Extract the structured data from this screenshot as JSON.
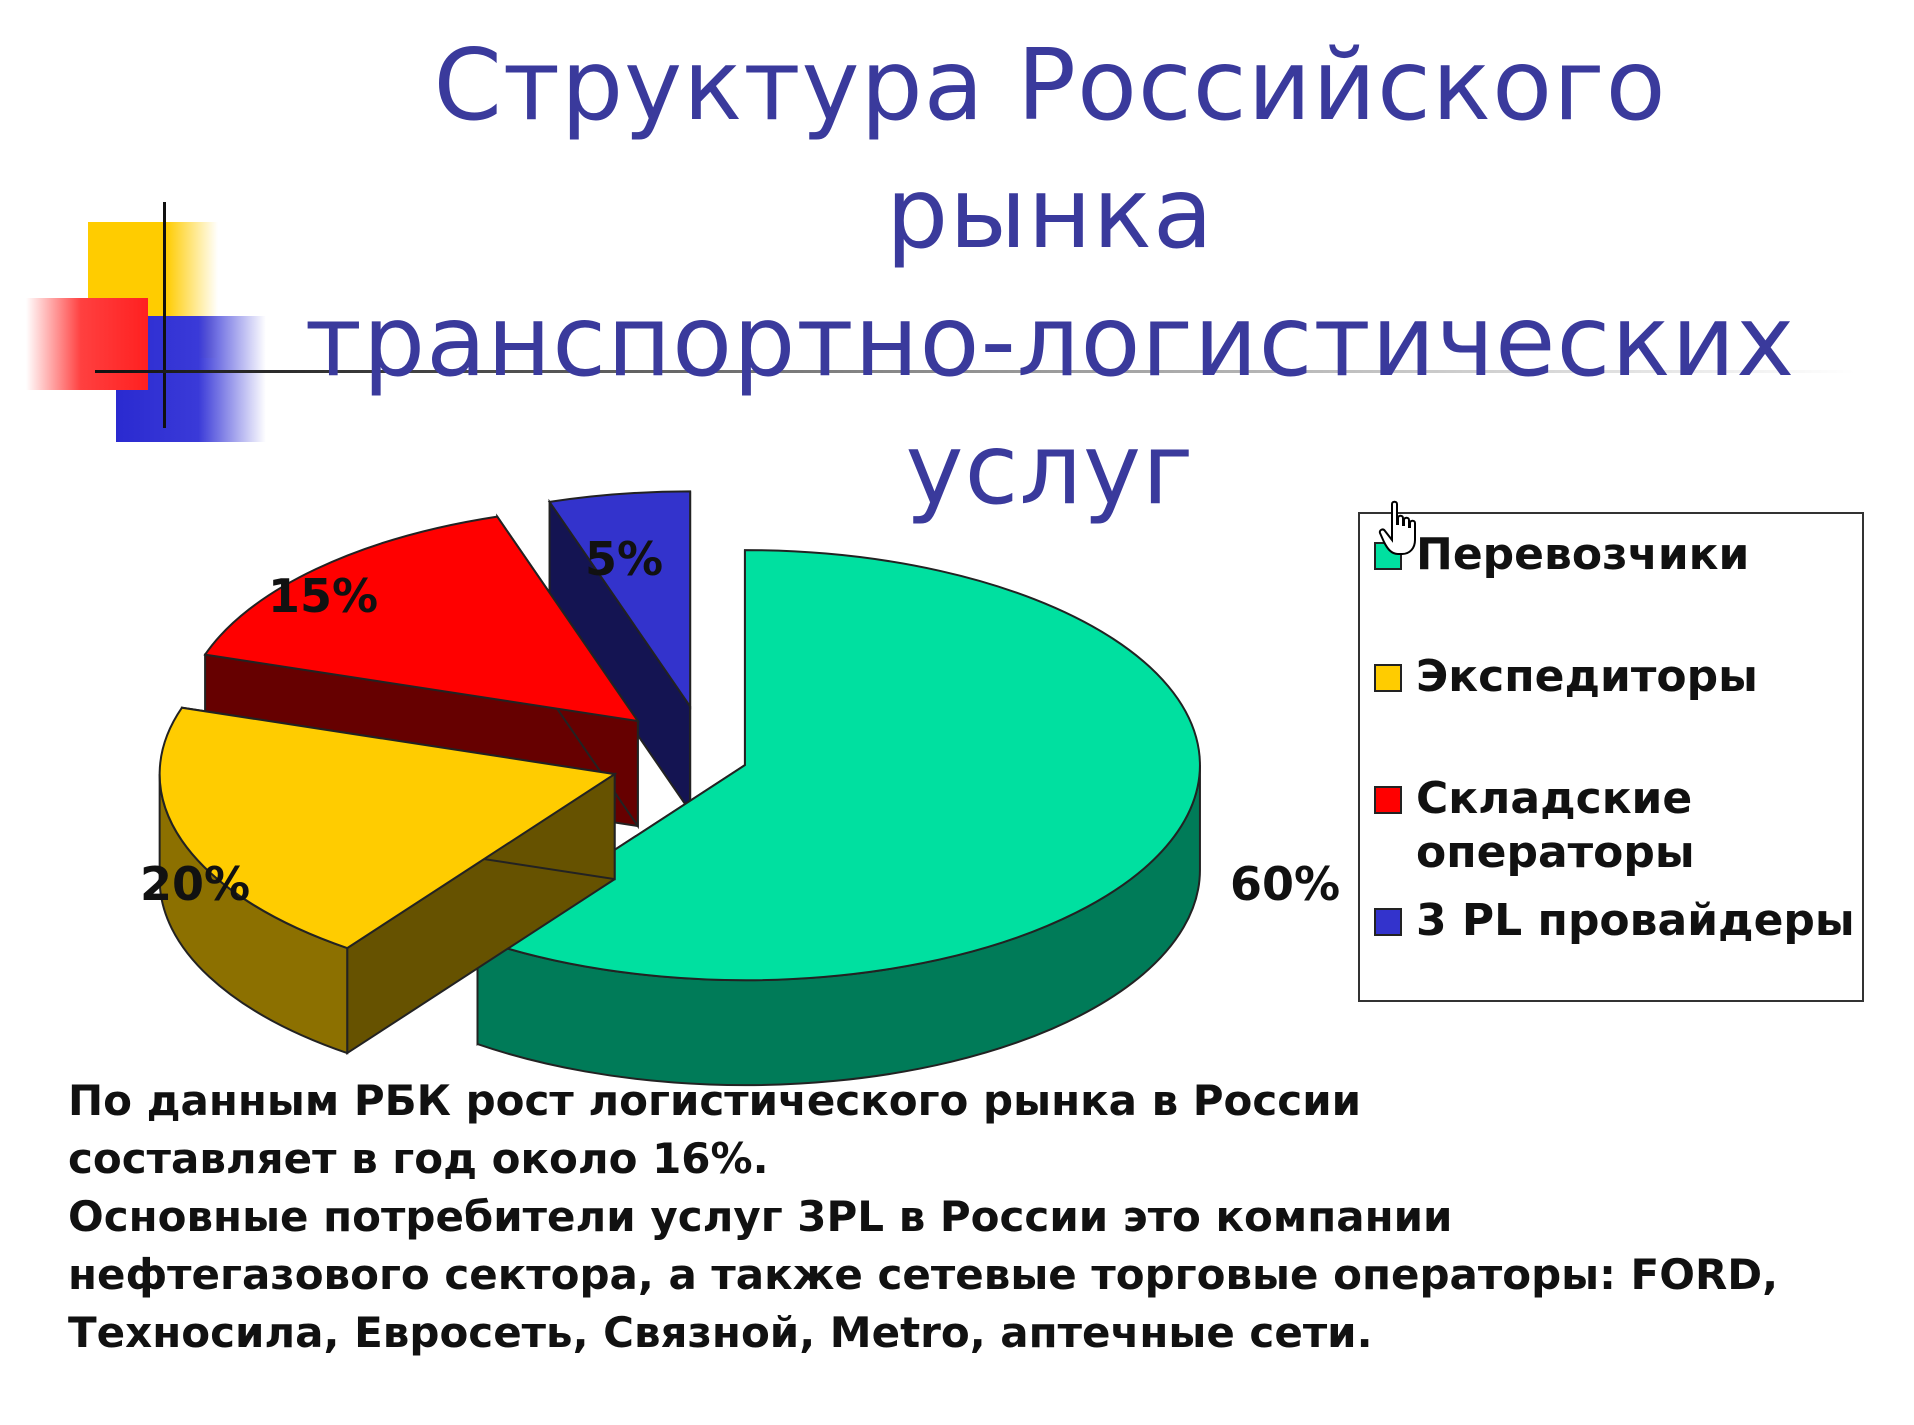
{
  "slide": {
    "title_lines": [
      "Структура Российского рынка",
      "транспортно-логистических",
      "услуг"
    ]
  },
  "chart_data": {
    "type": "pie",
    "style": "3d-exploded",
    "title": "",
    "slices": [
      {
        "name": "Перевозчики",
        "value": 60,
        "label": "60%",
        "color": "#00e0a0"
      },
      {
        "name": "Экспедиторы",
        "value": 20,
        "label": "20%",
        "color": "#ffcc00"
      },
      {
        "name": "Складские операторы",
        "value": 15,
        "label": "15%",
        "color": "#ff0000"
      },
      {
        "name": "3 PL провайдеры",
        "value": 5,
        "label": "5%",
        "color": "#3333cc"
      }
    ],
    "legend": {
      "placement": "right",
      "entries": [
        "Перевозчики",
        "Экспедиторы",
        "Складские операторы",
        "3 PL провайдеры"
      ]
    }
  },
  "footer": {
    "lines": [
      "По данным РБК рост логистического рынка в России",
      "составляет в год около 16%.",
      "Основные потребители услуг 3PL в России это компании",
      "нефтегазового сектора, а также сетевые торговые  операторы: FORD,",
      "Техносила, Евросеть, Связной, Metro, аптечные сети."
    ]
  },
  "icons": {
    "cursor": "hand-pointer-icon"
  }
}
